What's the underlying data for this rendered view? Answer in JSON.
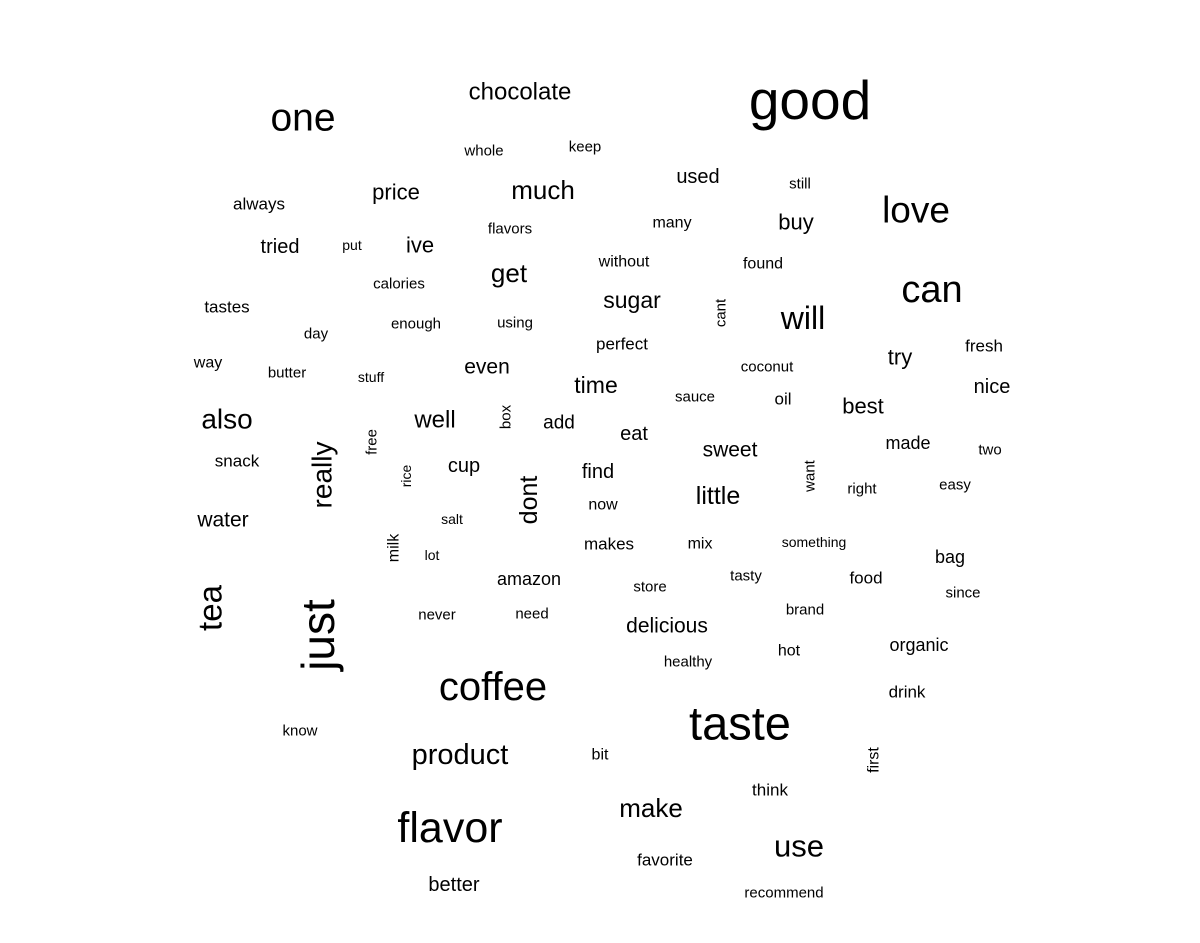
{
  "words": [
    {
      "text": "good",
      "weight": 100
    },
    {
      "text": "taste",
      "weight": 90
    },
    {
      "text": "just",
      "weight": 88
    },
    {
      "text": "flavor",
      "weight": 82
    },
    {
      "text": "coffee",
      "weight": 76
    },
    {
      "text": "one",
      "weight": 74
    },
    {
      "text": "can",
      "weight": 72
    },
    {
      "text": "love",
      "weight": 70
    },
    {
      "text": "tea",
      "weight": 62
    },
    {
      "text": "product",
      "weight": 56
    },
    {
      "text": "will",
      "weight": 56
    },
    {
      "text": "use",
      "weight": 56
    },
    {
      "text": "really",
      "weight": 54
    },
    {
      "text": "also",
      "weight": 50
    },
    {
      "text": "make",
      "weight": 50
    },
    {
      "text": "chocolate",
      "weight": 48
    },
    {
      "text": "much",
      "weight": 48
    },
    {
      "text": "get",
      "weight": 46
    },
    {
      "text": "little",
      "weight": 46
    },
    {
      "text": "time",
      "weight": 44
    },
    {
      "text": "sugar",
      "weight": 44
    },
    {
      "text": "well",
      "weight": 44
    },
    {
      "text": "dont",
      "weight": 44
    },
    {
      "text": "price",
      "weight": 42
    },
    {
      "text": "buy",
      "weight": 42
    },
    {
      "text": "ive",
      "weight": 42
    },
    {
      "text": "delicious",
      "weight": 40
    },
    {
      "text": "best",
      "weight": 40
    },
    {
      "text": "sweet",
      "weight": 40
    },
    {
      "text": "even",
      "weight": 40
    },
    {
      "text": "water",
      "weight": 40
    },
    {
      "text": "try",
      "weight": 40
    },
    {
      "text": "nice",
      "weight": 38
    },
    {
      "text": "used",
      "weight": 38
    },
    {
      "text": "tried",
      "weight": 38
    },
    {
      "text": "better",
      "weight": 38
    },
    {
      "text": "eat",
      "weight": 38
    },
    {
      "text": "find",
      "weight": 38
    },
    {
      "text": "cup",
      "weight": 38
    },
    {
      "text": "amazon",
      "weight": 36
    },
    {
      "text": "organic",
      "weight": 36
    },
    {
      "text": "add",
      "weight": 36
    },
    {
      "text": "bag",
      "weight": 36
    },
    {
      "text": "made",
      "weight": 36
    },
    {
      "text": "tastes",
      "weight": 34
    },
    {
      "text": "fresh",
      "weight": 34
    },
    {
      "text": "favorite",
      "weight": 34
    },
    {
      "text": "food",
      "weight": 34
    },
    {
      "text": "drink",
      "weight": 34
    },
    {
      "text": "perfect",
      "weight": 34
    },
    {
      "text": "think",
      "weight": 34
    },
    {
      "text": "snack",
      "weight": 34
    },
    {
      "text": "makes",
      "weight": 34
    },
    {
      "text": "always",
      "weight": 34
    },
    {
      "text": "many",
      "weight": 33
    },
    {
      "text": "without",
      "weight": 33
    },
    {
      "text": "found",
      "weight": 33
    },
    {
      "text": "mix",
      "weight": 33
    },
    {
      "text": "oil",
      "weight": 33
    },
    {
      "text": "hot",
      "weight": 33
    },
    {
      "text": "way",
      "weight": 33
    },
    {
      "text": "now",
      "weight": 33
    },
    {
      "text": "milk",
      "weight": 33
    },
    {
      "text": "first",
      "weight": 33
    },
    {
      "text": "bit",
      "weight": 32
    },
    {
      "text": "coconut",
      "weight": 31
    },
    {
      "text": "recommend",
      "weight": 31
    },
    {
      "text": "day",
      "weight": 31
    },
    {
      "text": "enough",
      "weight": 31
    },
    {
      "text": "easy",
      "weight": 31
    },
    {
      "text": "store",
      "weight": 31
    },
    {
      "text": "want",
      "weight": 31
    },
    {
      "text": "right",
      "weight": 31
    },
    {
      "text": "brand",
      "weight": 31
    },
    {
      "text": "free",
      "weight": 31
    },
    {
      "text": "know",
      "weight": 31
    },
    {
      "text": "using",
      "weight": 30
    },
    {
      "text": "calories",
      "weight": 30
    },
    {
      "text": "flavors",
      "weight": 30
    },
    {
      "text": "cant",
      "weight": 30
    },
    {
      "text": "keep",
      "weight": 30
    },
    {
      "text": "still",
      "weight": 30
    },
    {
      "text": "whole",
      "weight": 30
    },
    {
      "text": "butter",
      "weight": 30
    },
    {
      "text": "sauce",
      "weight": 30
    },
    {
      "text": "two",
      "weight": 30
    },
    {
      "text": "tasty",
      "weight": 30
    },
    {
      "text": "since",
      "weight": 30
    },
    {
      "text": "never",
      "weight": 30
    },
    {
      "text": "need",
      "weight": 30
    },
    {
      "text": "healthy",
      "weight": 30
    },
    {
      "text": "box",
      "weight": 30
    },
    {
      "text": "salt",
      "weight": 29
    },
    {
      "text": "lot",
      "weight": 29
    },
    {
      "text": "something",
      "weight": 29
    },
    {
      "text": "put",
      "weight": 29
    },
    {
      "text": "stuff",
      "weight": 29
    },
    {
      "text": "rice",
      "weight": 29
    }
  ]
}
